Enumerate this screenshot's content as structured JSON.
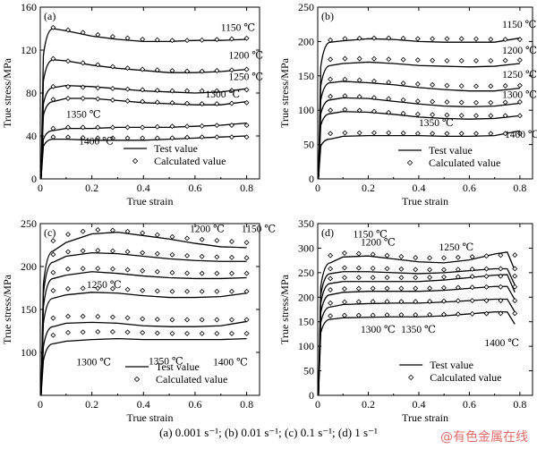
{
  "caption": "(a) 0.001 s⁻¹; (b) 0.01 s⁻¹; (c) 0.1 s⁻¹; (d) 1 s⁻¹",
  "watermark": "@有色金属在线",
  "chart_data": [
    {
      "type": "line",
      "panel_label": "(a)",
      "xlabel": "True strain",
      "ylabel": "True stress/MPa",
      "xlim": [
        0,
        0.85
      ],
      "ylim": [
        0,
        160
      ],
      "xticks": [
        "0",
        "0.2",
        "0.4",
        "0.6",
        "0.8"
      ],
      "xtick_values": [
        0,
        0.2,
        0.4,
        0.6,
        0.8
      ],
      "yticks": [
        "0",
        "40",
        "80",
        "120",
        "160"
      ],
      "ytick_values": [
        0,
        40,
        80,
        120,
        160
      ],
      "legend": {
        "position": "bottom-center",
        "test_label": "Test value",
        "calc_label": "Calculated value"
      },
      "series": [
        {
          "name": "1150 ℃",
          "x": [
            0.05,
            0.1,
            0.2,
            0.3,
            0.4,
            0.5,
            0.6,
            0.7,
            0.8
          ],
          "test": [
            140,
            138,
            133,
            130,
            128,
            128,
            129,
            129,
            130
          ],
          "calc": [
            141,
            139,
            135,
            132,
            130,
            129,
            129,
            130,
            131
          ]
        },
        {
          "name": "1200 ℃",
          "x": [
            0.05,
            0.1,
            0.2,
            0.3,
            0.4,
            0.5,
            0.6,
            0.7,
            0.8
          ],
          "test": [
            111,
            110,
            106,
            103,
            101,
            99,
            99,
            100,
            102
          ],
          "calc": [
            112,
            110,
            107,
            104,
            102,
            101,
            100,
            101,
            102
          ]
        },
        {
          "name": "1250 ℃",
          "x": [
            0.05,
            0.1,
            0.2,
            0.3,
            0.4,
            0.5,
            0.6,
            0.7,
            0.8
          ],
          "test": [
            85,
            87,
            86,
            84,
            82,
            81,
            80,
            81,
            84
          ],
          "calc": [
            86,
            86,
            85,
            84,
            83,
            82,
            82,
            82,
            83
          ]
        },
        {
          "name": "1300 ℃",
          "x": [
            0.05,
            0.1,
            0.2,
            0.3,
            0.4,
            0.5,
            0.6,
            0.7,
            0.8
          ],
          "test": [
            72,
            75,
            75,
            73,
            71,
            70,
            69,
            69,
            72
          ],
          "calc": [
            74,
            75,
            75,
            73,
            72,
            71,
            70,
            70,
            71
          ]
        },
        {
          "name": "1350 ℃",
          "x": [
            0.05,
            0.1,
            0.2,
            0.3,
            0.4,
            0.5,
            0.6,
            0.7,
            0.8
          ],
          "test": [
            45,
            47,
            47,
            48,
            48,
            48,
            49,
            50,
            52
          ],
          "calc": [
            47,
            48,
            48,
            48,
            48,
            49,
            49,
            50,
            50
          ]
        },
        {
          "name": "1400 ℃",
          "x": [
            0.05,
            0.1,
            0.2,
            0.3,
            0.4,
            0.5,
            0.6,
            0.7,
            0.8
          ],
          "test": [
            37,
            37,
            36,
            36,
            36,
            37,
            38,
            39,
            40
          ],
          "calc": [
            39,
            39,
            38,
            38,
            38,
            38,
            39,
            39,
            39
          ]
        }
      ],
      "label_anchor": [
        [
          0.7,
          138
        ],
        [
          0.73,
          112
        ],
        [
          0.73,
          92
        ],
        [
          0.64,
          76
        ],
        [
          0.1,
          57
        ],
        [
          0.15,
          32
        ]
      ]
    },
    {
      "type": "line",
      "panel_label": "(b)",
      "xlabel": "True strain",
      "ylabel": "True stress/MPa",
      "xlim": [
        0,
        0.85
      ],
      "ylim": [
        0,
        250
      ],
      "xticks": [
        "0",
        "0.2",
        "0.4",
        "0.6",
        "0.8"
      ],
      "xtick_values": [
        0,
        0.2,
        0.4,
        0.6,
        0.8
      ],
      "yticks": [
        "0",
        "50",
        "100",
        "150",
        "200",
        "250"
      ],
      "ytick_values": [
        0,
        50,
        100,
        150,
        200,
        250
      ],
      "legend": {
        "position": "bottom-right",
        "test_label": "Test value",
        "calc_label": "Calculated value"
      },
      "series": [
        {
          "name": "1150 ℃",
          "x": [
            0.05,
            0.1,
            0.2,
            0.3,
            0.4,
            0.5,
            0.6,
            0.7,
            0.8
          ],
          "test": [
            199,
            201,
            204,
            203,
            200,
            199,
            199,
            199,
            205
          ],
          "calc": [
            202,
            204,
            205,
            205,
            204,
            204,
            204,
            203,
            203
          ]
        },
        {
          "name": "1200 ℃",
          "x": [
            0.05,
            0.1,
            0.2,
            0.3,
            0.4,
            0.5,
            0.6,
            0.7,
            0.8
          ],
          "test": [
            165,
            168,
            170,
            168,
            165,
            164,
            163,
            164,
            168
          ],
          "calc": [
            174,
            175,
            175,
            174,
            173,
            172,
            172,
            172,
            173
          ]
        },
        {
          "name": "1250 ℃",
          "x": [
            0.05,
            0.1,
            0.2,
            0.3,
            0.4,
            0.5,
            0.6,
            0.7,
            0.8
          ],
          "test": [
            140,
            142,
            140,
            137,
            133,
            130,
            128,
            128,
            132
          ],
          "calc": [
            145,
            145,
            143,
            140,
            138,
            136,
            135,
            135,
            136
          ]
        },
        {
          "name": "1300 ℃",
          "x": [
            0.05,
            0.1,
            0.2,
            0.3,
            0.4,
            0.5,
            0.6,
            0.7,
            0.8
          ],
          "test": [
            115,
            118,
            117,
            113,
            109,
            106,
            105,
            106,
            110
          ],
          "calc": [
            120,
            121,
            119,
            116,
            113,
            112,
            111,
            111,
            112
          ]
        },
        {
          "name": "1350 ℃",
          "x": [
            0.05,
            0.1,
            0.2,
            0.3,
            0.4,
            0.5,
            0.6,
            0.7,
            0.8
          ],
          "test": [
            95,
            98,
            97,
            94,
            90,
            88,
            87,
            88,
            92
          ],
          "calc": [
            100,
            101,
            99,
            96,
            94,
            93,
            92,
            92,
            92
          ]
        },
        {
          "name": "1400 ℃",
          "x": [
            0.05,
            0.1,
            0.2,
            0.3,
            0.4,
            0.5,
            0.6,
            0.7,
            0.8
          ],
          "test": [
            58,
            62,
            63,
            63,
            63,
            62,
            62,
            63,
            70
          ],
          "calc": [
            66,
            67,
            67,
            67,
            66,
            66,
            66,
            66,
            66
          ]
        }
      ],
      "label_anchor": [
        [
          0.73,
          220
        ],
        [
          0.73,
          182
        ],
        [
          0.73,
          147
        ],
        [
          0.73,
          118
        ],
        [
          0.4,
          77
        ],
        [
          0.74,
          60
        ]
      ]
    },
    {
      "type": "line",
      "panel_label": "(c)",
      "xlabel": "True strain",
      "ylabel": "True stress/MPa",
      "xlim": [
        0,
        0.85
      ],
      "ylim": [
        50,
        250
      ],
      "xticks": [
        "0",
        "0.2",
        "0.4",
        "0.6",
        "0.8"
      ],
      "xtick_values": [
        0,
        0.2,
        0.4,
        0.6,
        0.8
      ],
      "yticks": [
        "100",
        "150",
        "200",
        "250"
      ],
      "ytick_values": [
        100,
        150,
        200,
        250
      ],
      "legend": {
        "position": "bottom-right",
        "test_label": "Test value",
        "calc_label": "Calculated value"
      },
      "series": [
        {
          "name": "1150 ℃",
          "x": [
            0.05,
            0.1,
            0.2,
            0.3,
            0.4,
            0.5,
            0.6,
            0.7,
            0.8
          ],
          "test": [
            218,
            228,
            238,
            240,
            236,
            232,
            227,
            223,
            222
          ],
          "calc": [
            230,
            237,
            243,
            242,
            239,
            235,
            232,
            230,
            228
          ]
        },
        {
          "name": "1200 ℃",
          "x": [
            0.05,
            0.1,
            0.2,
            0.3,
            0.4,
            0.5,
            0.6,
            0.7,
            0.8
          ],
          "test": [
            205,
            212,
            216,
            215,
            212,
            209,
            207,
            206,
            206
          ],
          "calc": [
            214,
            217,
            219,
            218,
            216,
            214,
            212,
            211,
            210
          ]
        },
        {
          "name": "1250 ℃",
          "x": [
            0.05,
            0.1,
            0.2,
            0.3,
            0.4,
            0.5,
            0.6,
            0.7,
            0.8
          ],
          "test": [
            186,
            190,
            194,
            192,
            189,
            187,
            186,
            186,
            187
          ],
          "calc": [
            193,
            197,
            198,
            197,
            195,
            193,
            192,
            192,
            192
          ]
        },
        {
          "name": "1300 ℃",
          "x": [
            0.05,
            0.1,
            0.2,
            0.3,
            0.4,
            0.5,
            0.6,
            0.7,
            0.8
          ],
          "test": [
            163,
            167,
            170,
            169,
            166,
            164,
            164,
            165,
            169
          ],
          "calc": [
            172,
            174,
            175,
            174,
            172,
            171,
            171,
            171,
            171
          ]
        },
        {
          "name": "1350 ℃",
          "x": [
            0.05,
            0.1,
            0.2,
            0.3,
            0.4,
            0.5,
            0.6,
            0.7,
            0.8
          ],
          "test": [
            130,
            134,
            135,
            134,
            131,
            130,
            130,
            131,
            136
          ],
          "calc": [
            140,
            142,
            142,
            141,
            139,
            138,
            138,
            138,
            138
          ]
        },
        {
          "name": "1400 ℃",
          "x": [
            0.05,
            0.1,
            0.2,
            0.3,
            0.4,
            0.5,
            0.6,
            0.7,
            0.8
          ],
          "test": [
            110,
            113,
            115,
            116,
            115,
            115,
            115,
            115,
            116
          ],
          "calc": [
            120,
            123,
            124,
            124,
            123,
            122,
            122,
            122,
            122
          ]
        }
      ],
      "label_anchor": [
        [
          0.78,
          240
        ],
        [
          0.58,
          240
        ],
        [
          0.18,
          175
        ],
        [
          0.14,
          85
        ],
        [
          0.42,
          86
        ],
        [
          0.67,
          85
        ]
      ]
    },
    {
      "type": "line",
      "panel_label": "(d)",
      "xlabel": "True strain",
      "ylabel": "True stress/MPa",
      "xlim": [
        0,
        0.85
      ],
      "ylim": [
        0,
        350
      ],
      "xticks": [
        "0",
        "0.2",
        "0.4",
        "0.6",
        "0.8"
      ],
      "xtick_values": [
        0,
        0.2,
        0.4,
        0.6,
        0.8
      ],
      "yticks": [
        "0",
        "50",
        "100",
        "150",
        "200",
        "250",
        "300",
        "350"
      ],
      "ytick_values": [
        0,
        50,
        100,
        150,
        200,
        250,
        300,
        350
      ],
      "legend": {
        "position": "bottom-center",
        "test_label": "Test value",
        "calc_label": "Calculated value"
      },
      "series": [
        {
          "name": "1150 ℃",
          "x": [
            0.05,
            0.1,
            0.2,
            0.3,
            0.4,
            0.5,
            0.6,
            0.7,
            0.75,
            0.78
          ],
          "test": [
            270,
            282,
            284,
            278,
            272,
            270,
            276,
            288,
            292,
            255
          ],
          "calc": [
            285,
            290,
            288,
            284,
            280,
            280,
            282,
            285,
            286,
            286
          ]
        },
        {
          "name": "1200 ℃",
          "x": [
            0.05,
            0.1,
            0.2,
            0.3,
            0.4,
            0.5,
            0.6,
            0.7,
            0.75,
            0.78
          ],
          "test": [
            248,
            252,
            252,
            250,
            248,
            250,
            254,
            258,
            258,
            225
          ],
          "calc": [
            258,
            260,
            259,
            258,
            256,
            256,
            257,
            258,
            258,
            258
          ]
        },
        {
          "name": "1250 ℃",
          "x": [
            0.05,
            0.1,
            0.2,
            0.3,
            0.4,
            0.5,
            0.6,
            0.7,
            0.75,
            0.78
          ],
          "test": [
            228,
            232,
            232,
            232,
            232,
            235,
            240,
            245,
            246,
            210
          ],
          "calc": [
            238,
            240,
            240,
            240,
            240,
            241,
            242,
            243,
            243,
            243
          ]
        },
        {
          "name": "1300 ℃",
          "x": [
            0.05,
            0.1,
            0.2,
            0.3,
            0.4,
            0.5,
            0.6,
            0.7,
            0.75,
            0.78
          ],
          "test": [
            205,
            210,
            212,
            212,
            212,
            214,
            218,
            222,
            222,
            195
          ],
          "calc": [
            215,
            217,
            218,
            218,
            218,
            219,
            220,
            221,
            221,
            221
          ]
        },
        {
          "name": "1350 ℃",
          "x": [
            0.05,
            0.1,
            0.2,
            0.3,
            0.4,
            0.5,
            0.6,
            0.7,
            0.75,
            0.78
          ],
          "test": [
            180,
            185,
            187,
            188,
            188,
            190,
            193,
            196,
            196,
            170
          ],
          "calc": [
            188,
            190,
            191,
            191,
            191,
            192,
            193,
            193,
            193,
            193
          ]
        },
        {
          "name": "1400 ℃",
          "x": [
            0.05,
            0.1,
            0.2,
            0.3,
            0.4,
            0.5,
            0.6,
            0.7,
            0.75,
            0.78
          ],
          "test": [
            155,
            158,
            159,
            160,
            160,
            162,
            166,
            170,
            170,
            145
          ],
          "calc": [
            162,
            163,
            163,
            164,
            164,
            165,
            166,
            167,
            167,
            167
          ]
        }
      ],
      "label_anchor": [
        [
          0.14,
          322
        ],
        [
          0.17,
          305
        ],
        [
          0.48,
          295
        ],
        [
          0.17,
          128
        ],
        [
          0.33,
          128
        ],
        [
          0.66,
          100
        ]
      ]
    }
  ]
}
